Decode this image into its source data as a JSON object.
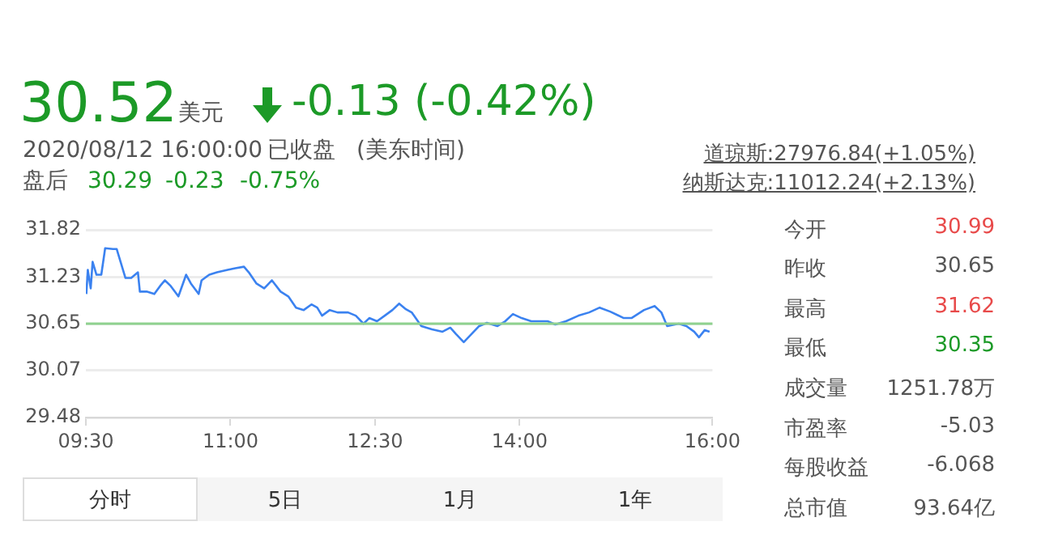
{
  "chart_data": {
    "type": "line",
    "annotations": [
      "30.52",
      "美元",
      "-0.13 (-0.42%)",
      "2020/08/12 16:00:00",
      "已收盘",
      "(美东时间)",
      "盘后",
      "30.29",
      "-0.23",
      "-0.75%",
      "道琼斯:27976.84(+1.05%)",
      "纳斯达克:11012.24(+2.13%)",
      "今开",
      "30.99",
      "昨收",
      "30.65",
      "最高",
      "31.62",
      "最低",
      "30.35",
      "成交量",
      "1251.78万",
      "市盈率",
      "-5.03",
      "每股收益",
      "-6.068",
      "总市值",
      "93.64亿",
      "分时",
      "5日",
      "1月",
      "1年"
    ],
    "series": [
      {
        "color": "#3b82f0",
        "x": [
          9.505,
          9.52,
          9.55,
          9.57,
          9.61,
          9.66,
          9.7,
          9.78,
          9.82,
          9.86,
          9.91,
          9.97,
          10.04,
          10.06,
          10.13,
          10.21,
          10.27,
          10.32,
          10.38,
          10.46,
          10.54,
          10.59,
          10.67,
          10.7,
          10.78,
          10.86,
          10.97,
          11.05,
          11.14,
          11.19,
          11.27,
          11.35,
          11.43,
          11.52,
          11.6,
          11.68,
          11.76,
          11.84,
          11.9,
          11.95,
          12.03,
          12.11,
          12.22,
          12.3,
          12.38,
          12.44,
          12.52,
          12.6,
          12.68,
          12.75,
          12.82,
          12.88,
          12.98,
          13.09,
          13.2,
          13.28,
          13.34,
          13.42,
          13.5,
          13.58,
          13.66,
          13.77,
          13.85,
          13.93,
          14.02,
          14.12,
          14.29,
          14.37,
          14.48,
          14.61,
          14.72,
          14.83,
          14.94,
          15.08,
          15.16,
          15.29,
          15.4,
          15.47,
          15.53,
          15.65,
          15.73,
          15.81,
          15.86,
          15.92,
          15.97
        ],
        "values": [
          31.02,
          31.32,
          31.09,
          31.42,
          31.26,
          31.26,
          31.59,
          31.58,
          31.58,
          31.42,
          31.22,
          31.22,
          31.29,
          31.05,
          31.05,
          31.02,
          31.12,
          31.19,
          31.12,
          30.99,
          31.26,
          31.15,
          31.02,
          31.19,
          31.26,
          31.29,
          31.32,
          31.34,
          31.36,
          31.29,
          31.15,
          31.09,
          31.19,
          31.05,
          30.99,
          30.85,
          30.82,
          30.89,
          30.85,
          30.75,
          30.82,
          30.79,
          30.79,
          30.75,
          30.65,
          30.72,
          30.68,
          30.75,
          30.82,
          30.9,
          30.83,
          30.79,
          30.62,
          30.58,
          30.55,
          30.6,
          30.52,
          30.42,
          30.52,
          30.62,
          30.66,
          30.62,
          30.68,
          30.77,
          30.72,
          30.68,
          30.68,
          30.64,
          30.68,
          30.75,
          30.79,
          30.85,
          30.8,
          30.72,
          30.72,
          30.82,
          30.87,
          30.79,
          30.62,
          30.65,
          30.62,
          30.55,
          30.48,
          30.57,
          30.55
        ]
      }
    ],
    "xlim": [
      9.5,
      16
    ],
    "xticks": [
      {
        "value": 9.5,
        "label": "09:30"
      },
      {
        "value": 11,
        "label": "11:00"
      },
      {
        "value": 12.5,
        "label": "12:30"
      },
      {
        "value": 14,
        "label": "14:00"
      },
      {
        "value": 16,
        "label": "16:00"
      }
    ],
    "ylim": [
      29.48,
      31.82
    ],
    "yticks": [
      29.48,
      30.07,
      30.65,
      31.23,
      31.82
    ],
    "grid": "y",
    "ref_lines": [
      {
        "axis": "y",
        "value": 30.65,
        "color": "#8fd18f"
      }
    ]
  }
}
